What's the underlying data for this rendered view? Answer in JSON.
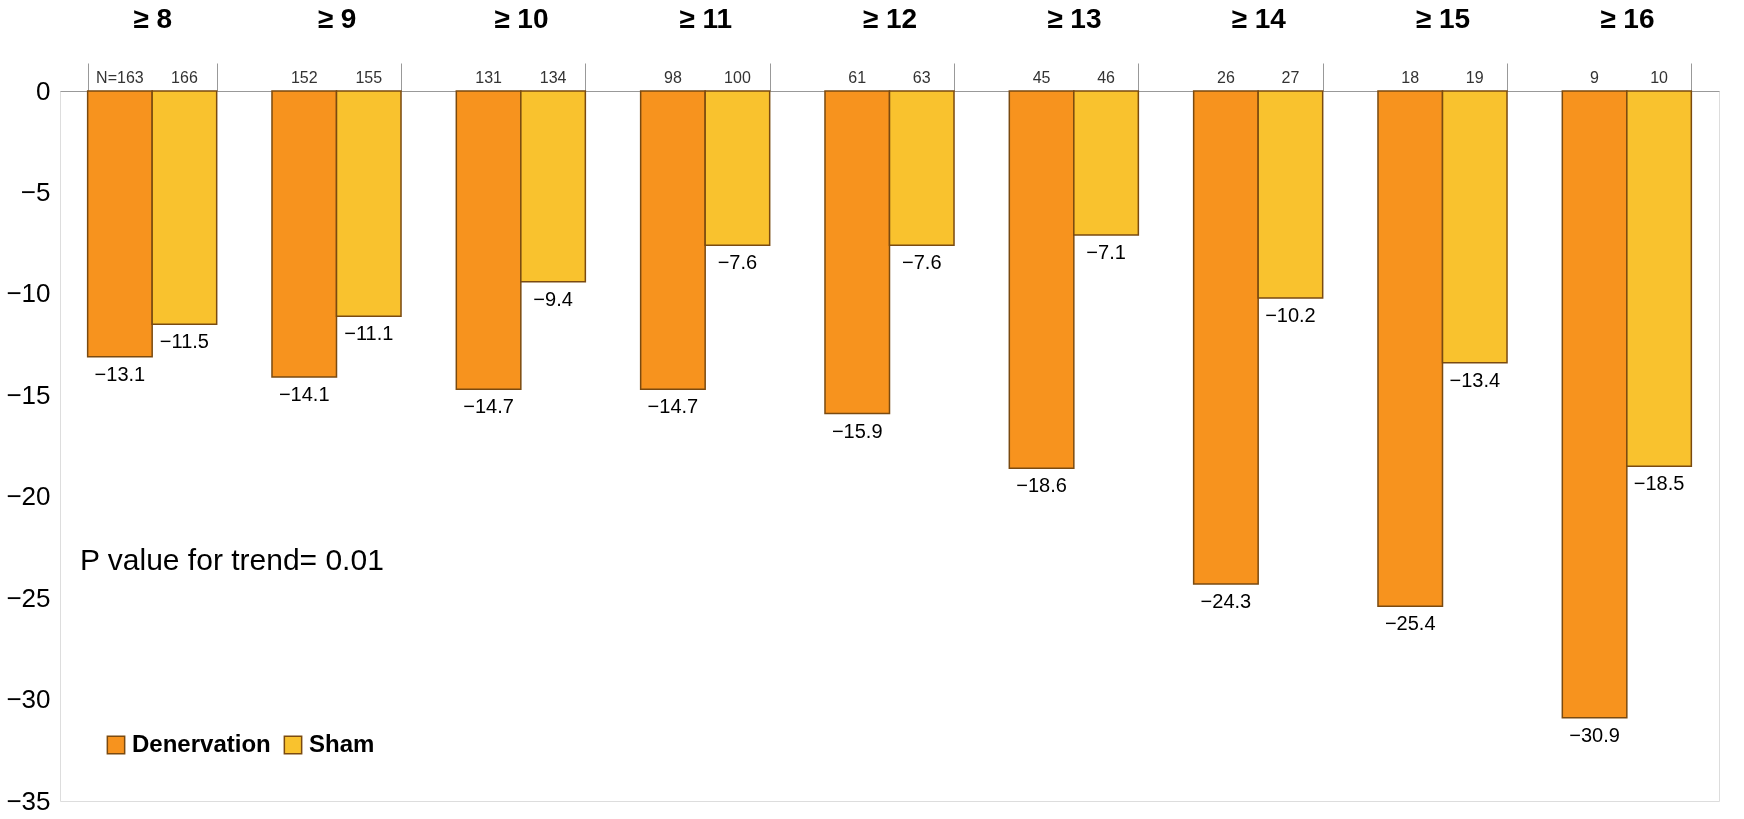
{
  "chart_data": {
    "type": "bar",
    "categories": [
      "≥ 8",
      "≥ 9",
      "≥ 10",
      "≥ 11",
      "≥ 12",
      "≥ 13",
      "≥ 14",
      "≥ 15",
      "≥ 16"
    ],
    "series": [
      {
        "name": "Denervation",
        "color": "#f7931e",
        "values": [
          -13.1,
          -14.1,
          -14.7,
          -14.7,
          -15.9,
          -18.6,
          -24.3,
          -25.4,
          -30.9
        ]
      },
      {
        "name": "Sham",
        "color": "#f9c22e",
        "values": [
          -11.5,
          -11.1,
          -9.4,
          -7.6,
          -7.6,
          -7.1,
          -10.2,
          -13.4,
          -18.5
        ]
      }
    ],
    "ylim": [
      -35,
      0
    ],
    "yticks": [
      -35,
      -30,
      -25,
      -20,
      -15,
      -10,
      -5,
      0
    ],
    "data_labels": true,
    "grid": false,
    "legend": "bottom left",
    "annotations": [
      "P value for trend= 0.01",
      {
        "text": "N=163",
        "x": "≥ 8",
        "y": 0
      },
      {
        "text": "166",
        "x": "≥ 8",
        "y": 0
      },
      {
        "text": "152",
        "x": "≥ 9",
        "y": 0
      },
      {
        "text": "155",
        "x": "≥ 9",
        "y": 0
      },
      {
        "text": "131",
        "x": "≥ 10",
        "y": 0
      },
      {
        "text": "134",
        "x": "≥ 10",
        "y": 0
      },
      {
        "text": "98",
        "x": "≥ 11",
        "y": 0
      },
      {
        "text": "100",
        "x": "≥ 11",
        "y": 0
      },
      {
        "text": "61",
        "x": "≥ 12",
        "y": 0
      },
      {
        "text": "63",
        "x": "≥ 12",
        "y": 0
      },
      {
        "text": "45",
        "x": "≥ 13",
        "y": 0
      },
      {
        "text": "46",
        "x": "≥ 13",
        "y": 0
      },
      {
        "text": "26",
        "x": "≥ 14",
        "y": 0
      },
      {
        "text": "27",
        "x": "≥ 14",
        "y": 0
      },
      {
        "text": "18",
        "x": "≥ 15",
        "y": 0
      },
      {
        "text": "19",
        "x": "≥ 15",
        "y": 0
      },
      {
        "text": "9",
        "x": "≥ 16",
        "y": 0
      },
      {
        "text": "10",
        "x": "≥ 16",
        "y": 0
      }
    ]
  }
}
